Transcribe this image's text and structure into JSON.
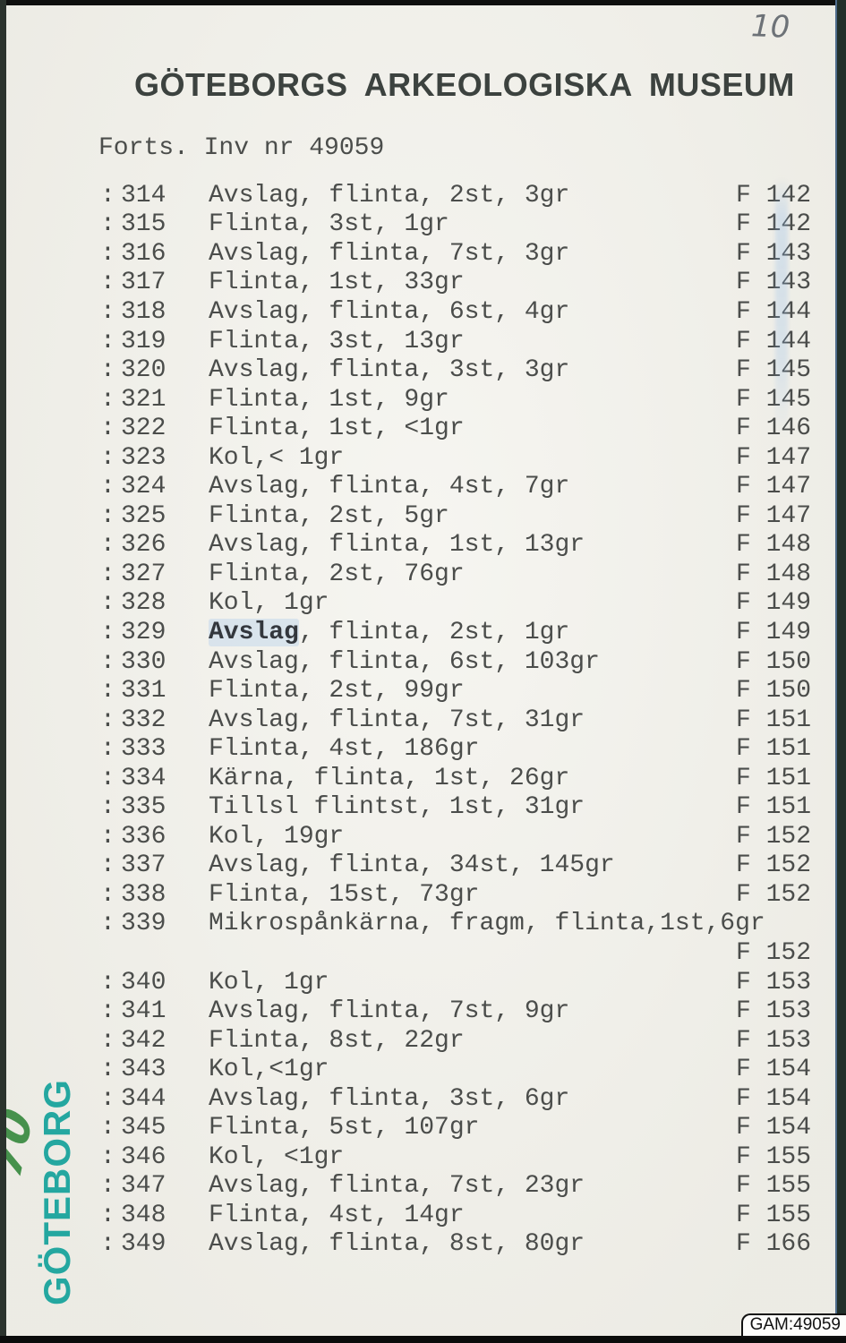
{
  "page": {
    "handwritten_page_number": "10",
    "title": "GÖTEBORGS ARKEOLOGISKA MUSEUM",
    "subtitle": "Forts. Inv nr 49059",
    "footer_label": "GAM:49059",
    "stamp": {
      "city": "GÖTEBORG",
      "year": "70"
    }
  },
  "colors": {
    "paper": "#f1f0e9",
    "typewriter_ink": "#4b4d4b",
    "title_ink": "#3c423f",
    "stamp_teal": "#14a29b",
    "stamp_green": "#3e8d44"
  },
  "inventory": {
    "prefix": ":",
    "rows": [
      {
        "no": "314",
        "desc": "Avslag, flinta, 2st, 3gr",
        "ref": "F 142"
      },
      {
        "no": "315",
        "desc": "Flinta, 3st, 1gr",
        "ref": "F 142"
      },
      {
        "no": "316",
        "desc": "Avslag, flinta, 7st, 3gr",
        "ref": "F 143"
      },
      {
        "no": "317",
        "desc": "Flinta, 1st, 33gr",
        "ref": "F 143"
      },
      {
        "no": "318",
        "desc": "Avslag, flinta, 6st, 4gr",
        "ref": "F 144"
      },
      {
        "no": "319",
        "desc": "Flinta, 3st, 13gr",
        "ref": "F 144"
      },
      {
        "no": "320",
        "desc": "Avslag, flinta, 3st, 3gr",
        "ref": "F 145"
      },
      {
        "no": "321",
        "desc": "Flinta, 1st, 9gr",
        "ref": "F 145"
      },
      {
        "no": "322",
        "desc": "Flinta, 1st, <1gr",
        "ref": "F 146"
      },
      {
        "no": "323",
        "desc": "Kol,< 1gr",
        "ref": "F 147"
      },
      {
        "no": "324",
        "desc": "Avslag, flinta, 4st, 7gr",
        "ref": "F 147"
      },
      {
        "no": "325",
        "desc": "Flinta, 2st, 5gr",
        "ref": "F 147"
      },
      {
        "no": "326",
        "desc": "Avslag, flinta, 1st, 13gr",
        "ref": "F 148"
      },
      {
        "no": "327",
        "desc": "Flinta, 2st, 76gr",
        "ref": "F 148"
      },
      {
        "no": "328",
        "desc": "Kol, 1gr",
        "ref": "F 149"
      },
      {
        "no": "329",
        "desc": "Avslag, flinta, 2st, 1gr",
        "ref": "F 149",
        "bold_word": "Avslag"
      },
      {
        "no": "330",
        "desc": "Avslag, flinta, 6st, 103gr",
        "ref": "F 150"
      },
      {
        "no": "331",
        "desc": "Flinta, 2st, 99gr",
        "ref": "F 150"
      },
      {
        "no": "332",
        "desc": "Avslag, flinta, 7st, 31gr",
        "ref": "F 151"
      },
      {
        "no": "333",
        "desc": "Flinta, 4st, 186gr",
        "ref": "F 151"
      },
      {
        "no": "334",
        "desc": "Kärna, flinta, 1st, 26gr",
        "ref": "F 151"
      },
      {
        "no": "335",
        "desc": "Tillsl flintst, 1st, 31gr",
        "ref": "F 151"
      },
      {
        "no": "336",
        "desc": "Kol, 19gr",
        "ref": "F 152"
      },
      {
        "no": "337",
        "desc": "Avslag, flinta, 34st, 145gr",
        "ref": "F 152"
      },
      {
        "no": "338",
        "desc": "Flinta, 15st, 73gr",
        "ref": "F 152"
      },
      {
        "no": "339",
        "desc": "Mikrospånkärna, fragm, flinta,1st,6gr",
        "ref": ""
      },
      {
        "no": "",
        "desc": "",
        "ref": "F 152",
        "continuation": true
      },
      {
        "no": "340",
        "desc": "Kol, 1gr",
        "ref": "F 153"
      },
      {
        "no": "341",
        "desc": "Avslag, flinta, 7st, 9gr",
        "ref": "F 153"
      },
      {
        "no": "342",
        "desc": "Flinta, 8st, 22gr",
        "ref": "F 153"
      },
      {
        "no": "343",
        "desc": "Kol,<1gr",
        "ref": "F 154"
      },
      {
        "no": "344",
        "desc": "Avslag, flinta, 3st, 6gr",
        "ref": "F 154"
      },
      {
        "no": "345",
        "desc": "Flinta, 5st, 107gr",
        "ref": "F 154"
      },
      {
        "no": "346",
        "desc": "Kol, <1gr",
        "ref": "F 155"
      },
      {
        "no": "347",
        "desc": "Avslag, flinta, 7st, 23gr",
        "ref": "F 155"
      },
      {
        "no": "348",
        "desc": "Flinta, 4st, 14gr",
        "ref": "F 155"
      },
      {
        "no": "349",
        "desc": "Avslag, flinta, 8st, 80gr",
        "ref": "F 166"
      }
    ]
  }
}
